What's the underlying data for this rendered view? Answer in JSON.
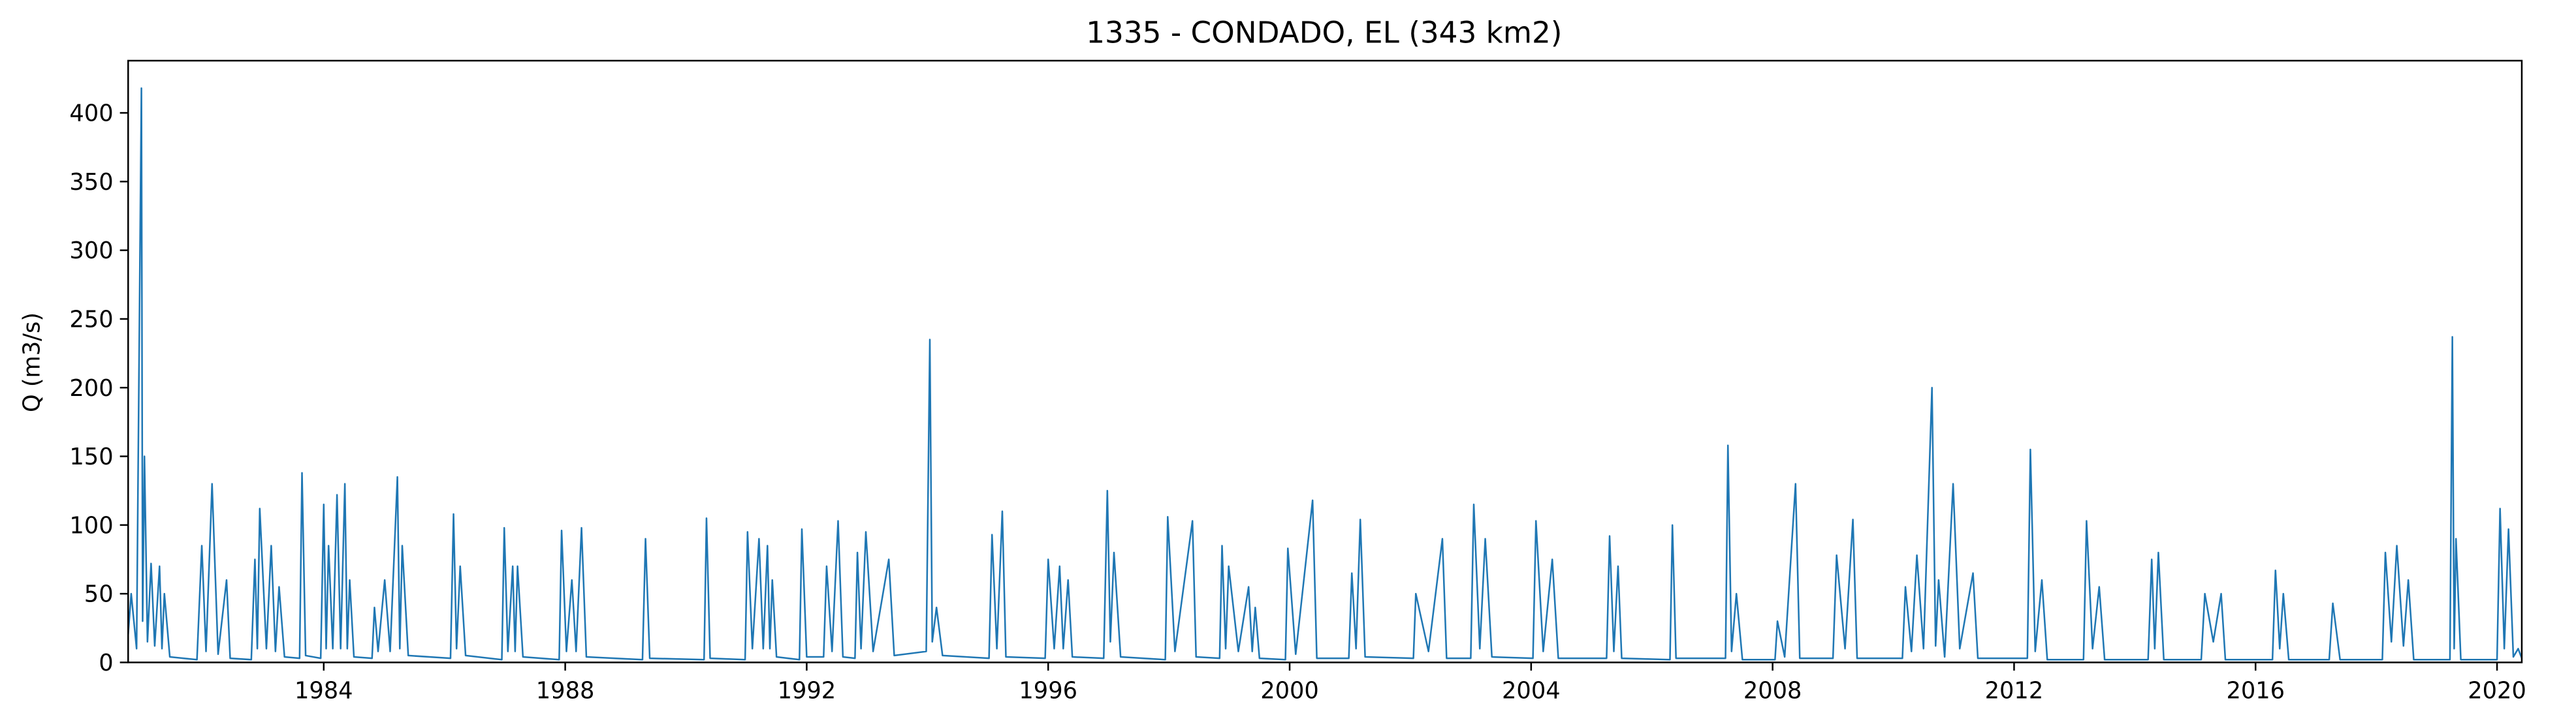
{
  "chart_data": {
    "type": "line",
    "title": "1335 - CONDADO, EL (343 km2)",
    "y_label": "Q (m3/s)",
    "x": [
      1980.76,
      1980.81,
      1980.9,
      1980.98,
      1981.0,
      1981.03,
      1981.08,
      1981.14,
      1981.2,
      1981.28,
      1981.32,
      1981.36,
      1981.45,
      1981.9,
      1981.98,
      1982.05,
      1982.15,
      1982.25,
      1982.39,
      1982.45,
      1982.8,
      1982.86,
      1982.9,
      1982.94,
      1983.05,
      1983.13,
      1983.2,
      1983.26,
      1983.35,
      1983.6,
      1983.64,
      1983.7,
      1983.95,
      1984.0,
      1984.04,
      1984.08,
      1984.15,
      1984.22,
      1984.28,
      1984.35,
      1984.39,
      1984.43,
      1984.5,
      1984.8,
      1984.84,
      1984.9,
      1985.01,
      1985.1,
      1985.22,
      1985.26,
      1985.3,
      1985.4,
      1986.1,
      1986.15,
      1986.2,
      1986.26,
      1986.35,
      1986.95,
      1986.99,
      1987.05,
      1987.13,
      1987.17,
      1987.21,
      1987.3,
      1987.9,
      1987.94,
      1988.02,
      1988.11,
      1988.18,
      1988.27,
      1988.35,
      1989.28,
      1989.33,
      1989.4,
      1990.3,
      1990.34,
      1990.4,
      1990.98,
      1991.02,
      1991.1,
      1991.21,
      1991.28,
      1991.35,
      1991.39,
      1991.43,
      1991.5,
      1991.88,
      1991.92,
      1992.0,
      1992.28,
      1992.33,
      1992.42,
      1992.52,
      1992.6,
      1992.8,
      1992.84,
      1992.9,
      1992.98,
      1993.1,
      1993.36,
      1993.45,
      1993.98,
      1994.04,
      1994.08,
      1994.15,
      1994.25,
      1995.02,
      1995.07,
      1995.15,
      1995.24,
      1995.3,
      1995.95,
      1996.0,
      1996.1,
      1996.19,
      1996.25,
      1996.33,
      1996.4,
      1996.92,
      1996.98,
      1997.03,
      1997.09,
      1997.2,
      1997.94,
      1997.98,
      1998.1,
      1998.39,
      1998.45,
      1998.84,
      1998.88,
      1998.94,
      1998.99,
      1999.15,
      1999.32,
      1999.38,
      1999.43,
      1999.5,
      1999.93,
      1999.97,
      2000.1,
      2000.38,
      2000.45,
      2000.98,
      2001.03,
      2001.1,
      2001.17,
      2001.25,
      2002.05,
      2002.09,
      2002.3,
      2002.53,
      2002.6,
      2003.0,
      2003.05,
      2003.15,
      2003.24,
      2003.35,
      2004.03,
      2004.08,
      2004.2,
      2004.35,
      2004.45,
      2005.25,
      2005.3,
      2005.37,
      2005.44,
      2005.5,
      2006.3,
      2006.34,
      2006.4,
      2007.22,
      2007.26,
      2007.32,
      2007.4,
      2007.5,
      2008.04,
      2008.08,
      2008.2,
      2008.38,
      2008.45,
      2009.0,
      2009.06,
      2009.2,
      2009.33,
      2009.4,
      2010.15,
      2010.2,
      2010.3,
      2010.39,
      2010.5,
      2010.64,
      2010.7,
      2010.75,
      2010.85,
      2010.99,
      2011.1,
      2011.32,
      2011.4,
      2012.22,
      2012.27,
      2012.35,
      2012.46,
      2012.55,
      2013.15,
      2013.2,
      2013.3,
      2013.41,
      2013.5,
      2014.22,
      2014.28,
      2014.33,
      2014.39,
      2014.48,
      2015.1,
      2015.16,
      2015.3,
      2015.43,
      2015.5,
      2016.28,
      2016.33,
      2016.4,
      2016.46,
      2016.55,
      2017.22,
      2017.28,
      2017.4,
      2018.1,
      2018.15,
      2018.25,
      2018.34,
      2018.45,
      2018.53,
      2018.62,
      2019.22,
      2019.26,
      2019.29,
      2019.32,
      2019.4,
      2020.0,
      2020.05,
      2020.12,
      2020.19,
      2020.27,
      2020.35,
      2020.41
    ],
    "values": [
      20,
      50,
      10,
      418,
      30,
      150,
      15,
      72,
      12,
      70,
      10,
      50,
      4,
      2,
      85,
      8,
      130,
      6,
      60,
      3,
      2,
      75,
      10,
      112,
      10,
      85,
      8,
      55,
      4,
      3,
      138,
      5,
      3,
      115,
      10,
      85,
      10,
      122,
      10,
      130,
      10,
      60,
      4,
      3,
      40,
      8,
      60,
      8,
      135,
      10,
      85,
      5,
      3,
      108,
      10,
      70,
      5,
      2,
      98,
      8,
      70,
      8,
      70,
      4,
      2,
      96,
      8,
      60,
      8,
      98,
      4,
      2,
      90,
      3,
      2,
      105,
      3,
      2,
      95,
      10,
      90,
      10,
      85,
      10,
      60,
      4,
      2,
      97,
      4,
      4,
      70,
      8,
      103,
      4,
      3,
      80,
      10,
      95,
      8,
      75,
      5,
      8,
      235,
      15,
      40,
      5,
      3,
      93,
      10,
      110,
      4,
      3,
      75,
      10,
      70,
      10,
      60,
      4,
      3,
      125,
      15,
      80,
      4,
      2,
      106,
      8,
      103,
      4,
      3,
      85,
      10,
      70,
      8,
      55,
      8,
      40,
      3,
      2,
      83,
      6,
      118,
      3,
      3,
      65,
      10,
      104,
      4,
      3,
      50,
      8,
      90,
      3,
      3,
      115,
      10,
      90,
      4,
      3,
      103,
      8,
      75,
      3,
      3,
      92,
      8,
      70,
      3,
      2,
      100,
      3,
      3,
      158,
      8,
      50,
      2,
      2,
      30,
      4,
      130,
      3,
      3,
      78,
      10,
      104,
      3,
      3,
      55,
      8,
      78,
      10,
      200,
      12,
      60,
      4,
      130,
      10,
      65,
      3,
      3,
      155,
      8,
      60,
      2,
      2,
      103,
      10,
      55,
      2,
      2,
      75,
      10,
      80,
      2,
      2,
      50,
      15,
      50,
      2,
      2,
      67,
      10,
      50,
      2,
      2,
      43,
      2,
      2,
      80,
      15,
      85,
      12,
      60,
      2,
      2,
      237,
      10,
      90,
      2,
      2,
      112,
      10,
      97,
      4,
      10,
      3
    ],
    "color": "#1f77b4",
    "xlim": [
      1980.76,
      2020.41
    ],
    "xticks": [
      1984,
      1988,
      1992,
      1996,
      2000,
      2004,
      2008,
      2012,
      2016,
      2020
    ],
    "ylim": [
      0,
      438
    ],
    "yticks": [
      0,
      50,
      100,
      150,
      200,
      250,
      300,
      350,
      400
    ]
  }
}
